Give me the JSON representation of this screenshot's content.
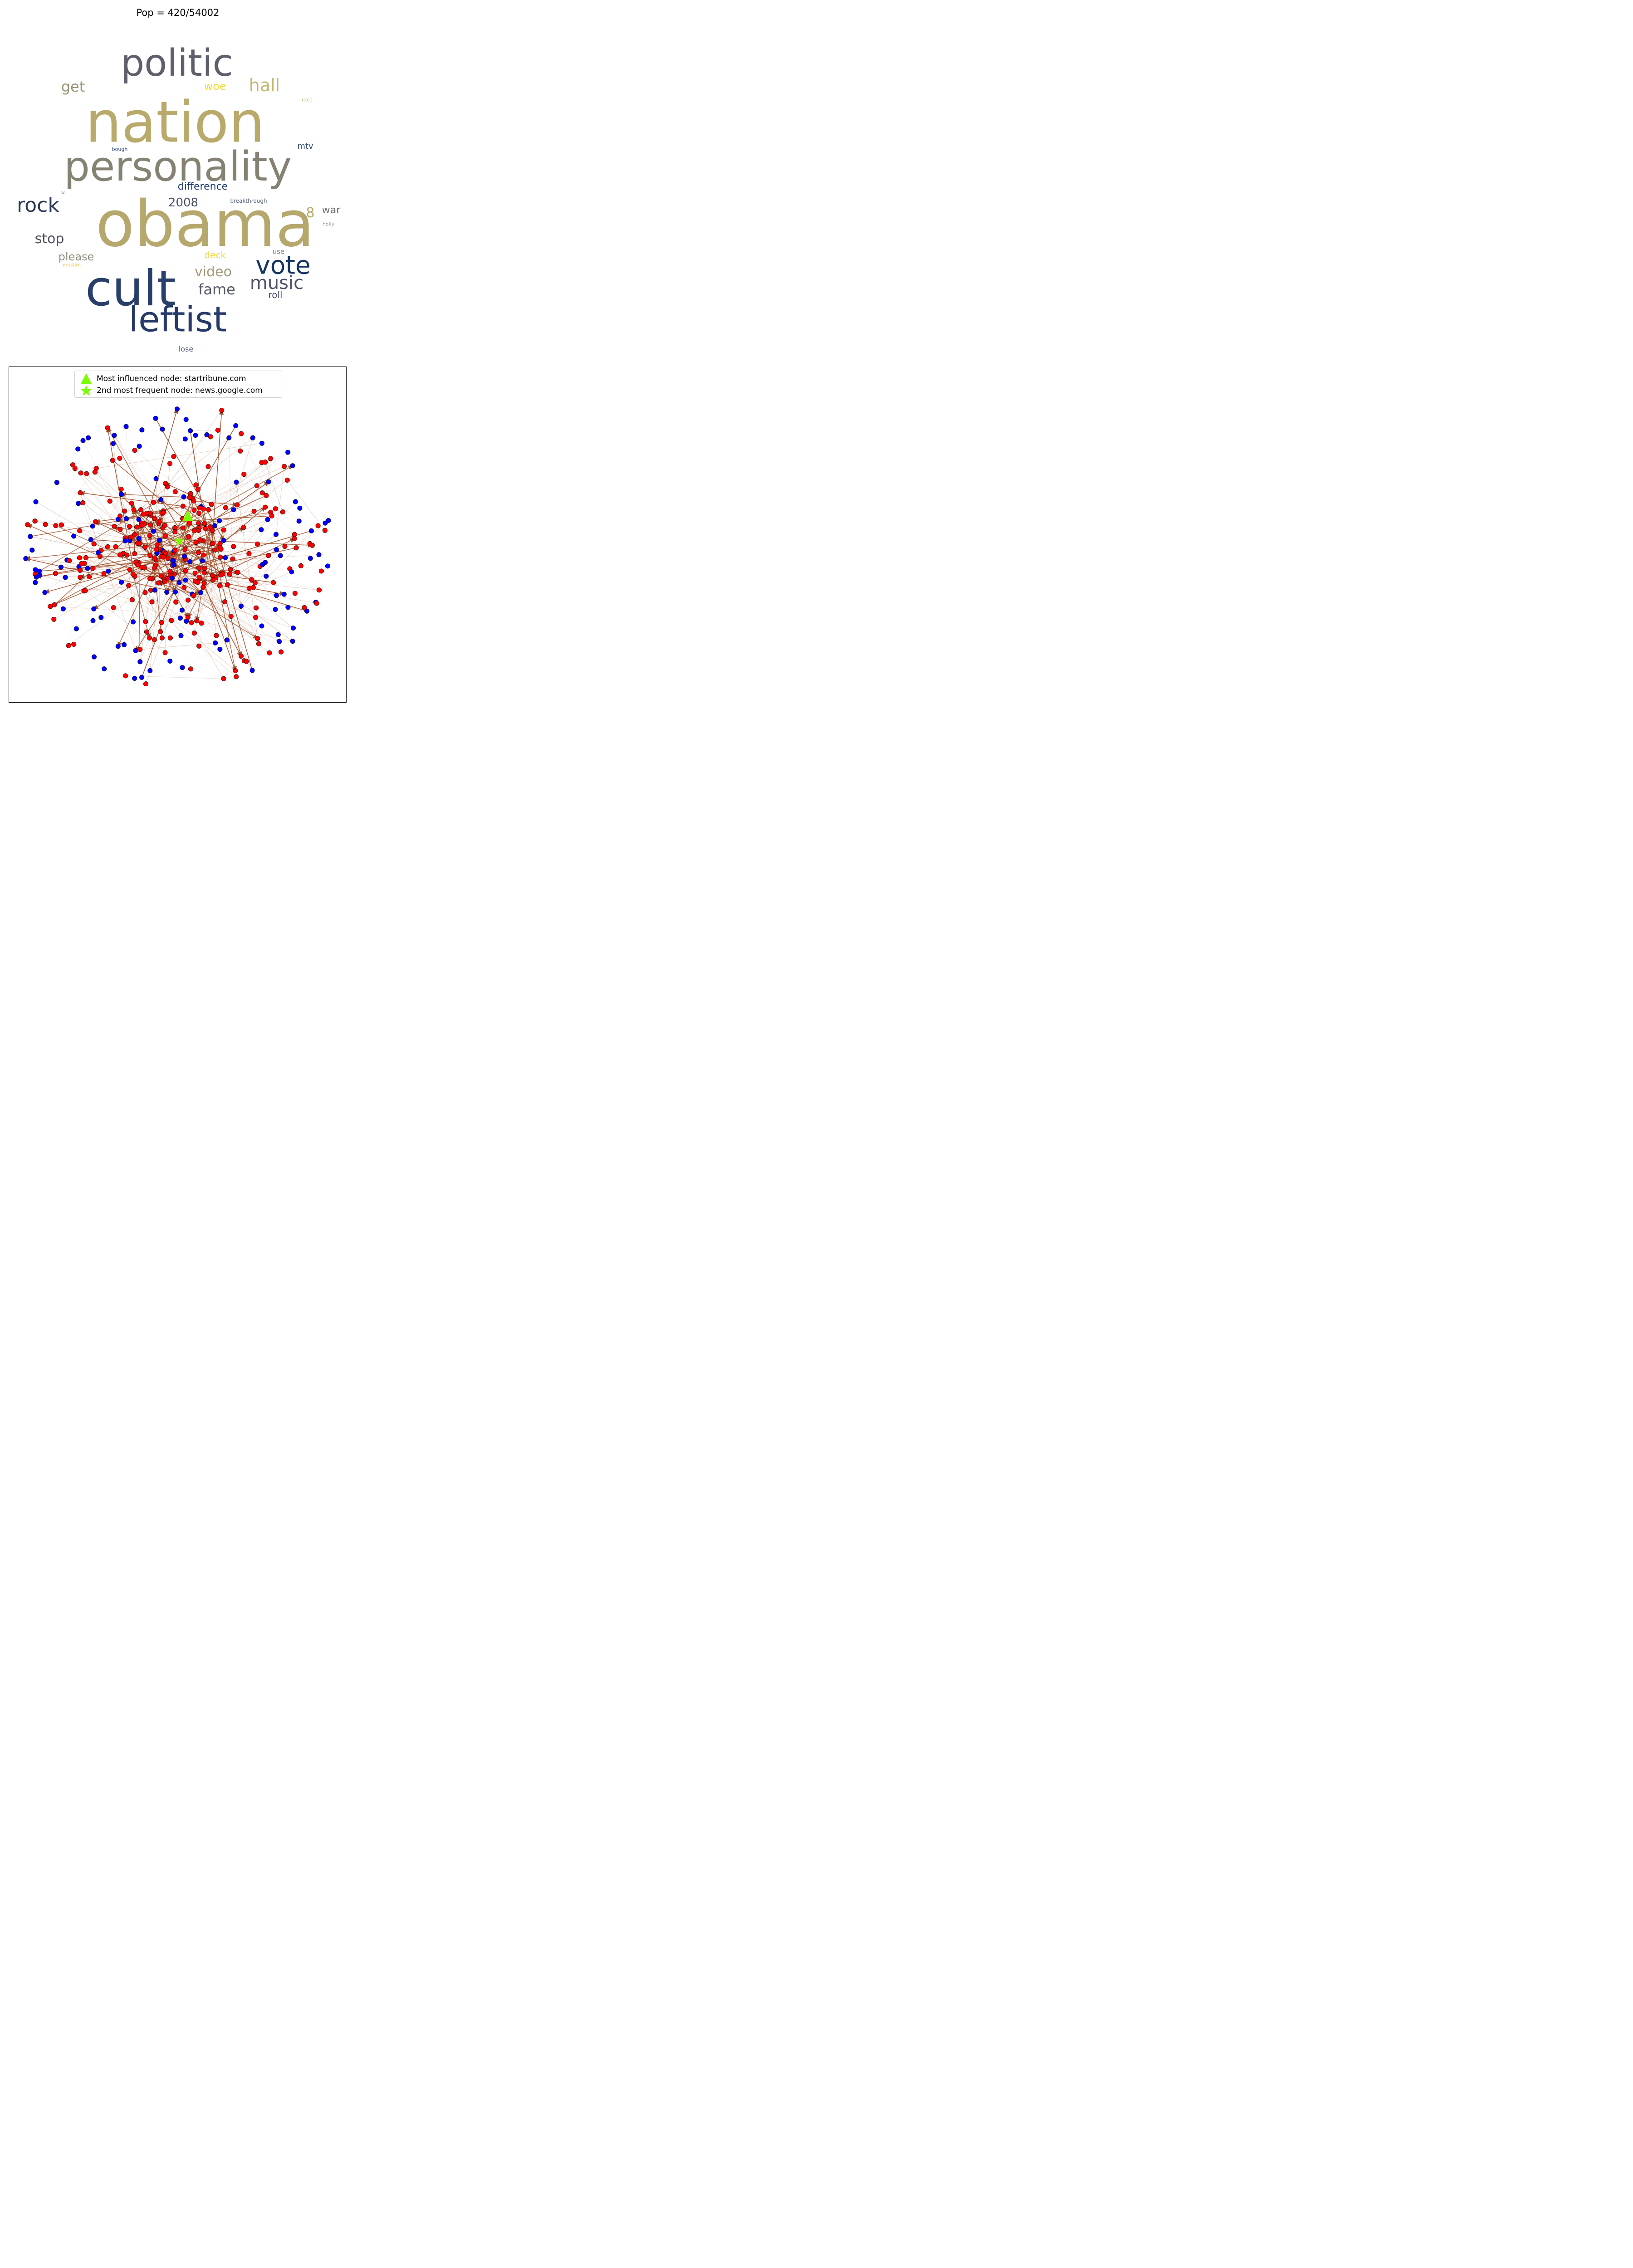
{
  "title": "Pop = 420/54002",
  "wordcloud": {
    "words": [
      {
        "text": "politic",
        "color": "#5e5f6c"
      },
      {
        "text": "nation",
        "color": "#b9aa6c"
      },
      {
        "text": "personality",
        "color": "#868273"
      },
      {
        "text": "obama",
        "color": "#b6a76c"
      },
      {
        "text": "cult",
        "color": "#283f6b"
      },
      {
        "text": "leftist",
        "color": "#263a69"
      },
      {
        "text": "vote",
        "color": "#163566"
      },
      {
        "text": "music",
        "color": "#4a5169"
      },
      {
        "text": "video",
        "color": "#a29a79"
      },
      {
        "text": "fame",
        "color": "#565a68"
      },
      {
        "text": "rock",
        "color": "#283858"
      },
      {
        "text": "hall",
        "color": "#c4b772"
      },
      {
        "text": "get",
        "color": "#9a9577"
      },
      {
        "text": "woe",
        "color": "#f2dc3c"
      },
      {
        "text": "stop",
        "color": "#4f5060"
      },
      {
        "text": "2008",
        "color": "#4b526a"
      },
      {
        "text": "difference",
        "color": "#1d3a70"
      },
      {
        "text": "please",
        "color": "#8e8b7c"
      },
      {
        "text": "8",
        "color": "#bbab6f"
      },
      {
        "text": "war",
        "color": "#6b6c70"
      },
      {
        "text": "deck",
        "color": "#f2d84e"
      },
      {
        "text": "roll",
        "color": "#4b5474"
      },
      {
        "text": "mtv",
        "color": "#2f4d7a"
      },
      {
        "text": "use",
        "color": "#797a7c"
      },
      {
        "text": "lose",
        "color": "#4e5a7a"
      },
      {
        "text": "breakthrough",
        "color": "#56607c"
      },
      {
        "text": "bough",
        "color": "#2e4c7e"
      },
      {
        "text": "race",
        "color": "#c3b47f"
      },
      {
        "text": "holly",
        "color": "#9a9682"
      },
      {
        "text": "muslim",
        "color": "#e7c65a"
      },
      {
        "text": "so",
        "color": "#7f8595"
      }
    ]
  },
  "network": {
    "legend": [
      {
        "marker": "triangle-icon",
        "color": "#7cfc00",
        "label": "Most influenced node: startribune.com"
      },
      {
        "marker": "star-icon",
        "color": "#7cfc00",
        "label": "2nd most frequent node: news.google.com"
      }
    ],
    "node_colors": {
      "red": "#ff0000",
      "blue": "#0000ff"
    },
    "edge_color": "#a0522d",
    "highlight_color": "#7cfc00"
  }
}
